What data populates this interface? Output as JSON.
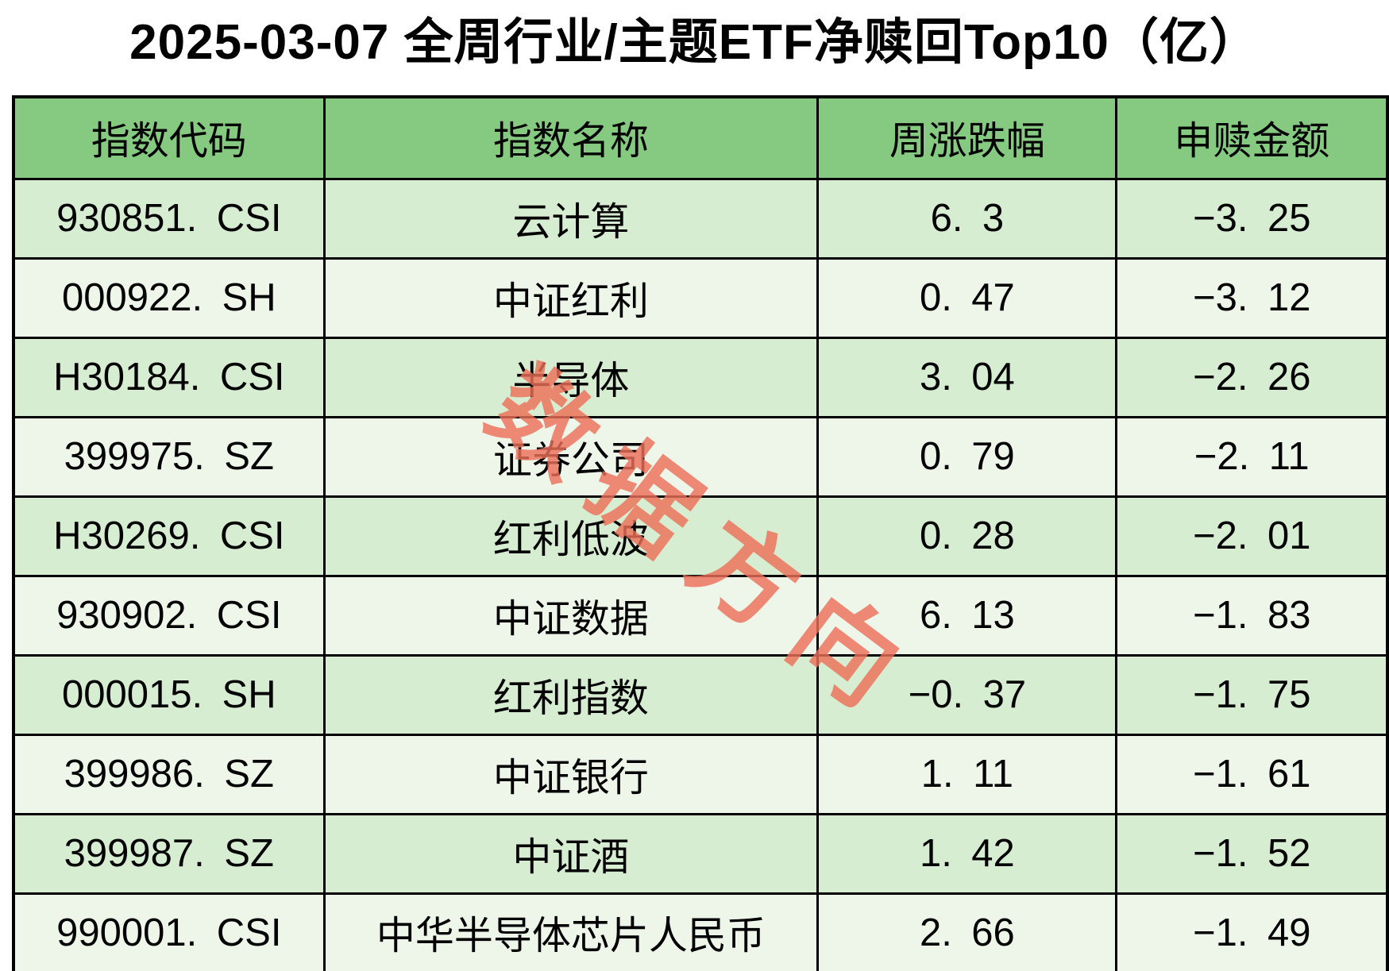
{
  "title": "2025-03-07 全周行业/主题ETF净赎回Top10（亿）",
  "watermark": {
    "text": "数据方向",
    "color": "#ec7059"
  },
  "colors": {
    "header_bg": "#85ca80",
    "row_odd_bg": "#d7edd2",
    "row_even_bg": "#eef6ea",
    "border": "#000000",
    "title_color": "#000000",
    "watermark": "#ec7059"
  },
  "chart_data": {
    "type": "table",
    "title": "2025-03-07 全周行业/主题ETF净赎回Top10（亿）",
    "units": "亿",
    "columns": [
      "指数代码",
      "指数名称",
      "周涨跌幅",
      "申赎金额"
    ],
    "rows": [
      {
        "code": "930851.CSI",
        "name": "云计算",
        "weekly_change": 6.3,
        "redeem_amount": -3.25
      },
      {
        "code": "000922.SH",
        "name": "中证红利",
        "weekly_change": 0.47,
        "redeem_amount": -3.12
      },
      {
        "code": "H30184.CSI",
        "name": "半导体",
        "weekly_change": 3.04,
        "redeem_amount": -2.26
      },
      {
        "code": "399975.SZ",
        "name": "证券公司",
        "weekly_change": 0.79,
        "redeem_amount": -2.11
      },
      {
        "code": "H30269.CSI",
        "name": "红利低波",
        "weekly_change": 0.28,
        "redeem_amount": -2.01
      },
      {
        "code": "930902.CSI",
        "name": "中证数据",
        "weekly_change": 6.13,
        "redeem_amount": -1.83
      },
      {
        "code": "000015.SH",
        "name": "红利指数",
        "weekly_change": -0.37,
        "redeem_amount": -1.75
      },
      {
        "code": "399986.SZ",
        "name": "中证银行",
        "weekly_change": 1.11,
        "redeem_amount": -1.61
      },
      {
        "code": "399987.SZ",
        "name": "中证酒",
        "weekly_change": 1.42,
        "redeem_amount": -1.52
      },
      {
        "code": "990001.CSI",
        "name": "中华半导体芯片人民币",
        "weekly_change": 2.66,
        "redeem_amount": -1.49
      }
    ]
  }
}
